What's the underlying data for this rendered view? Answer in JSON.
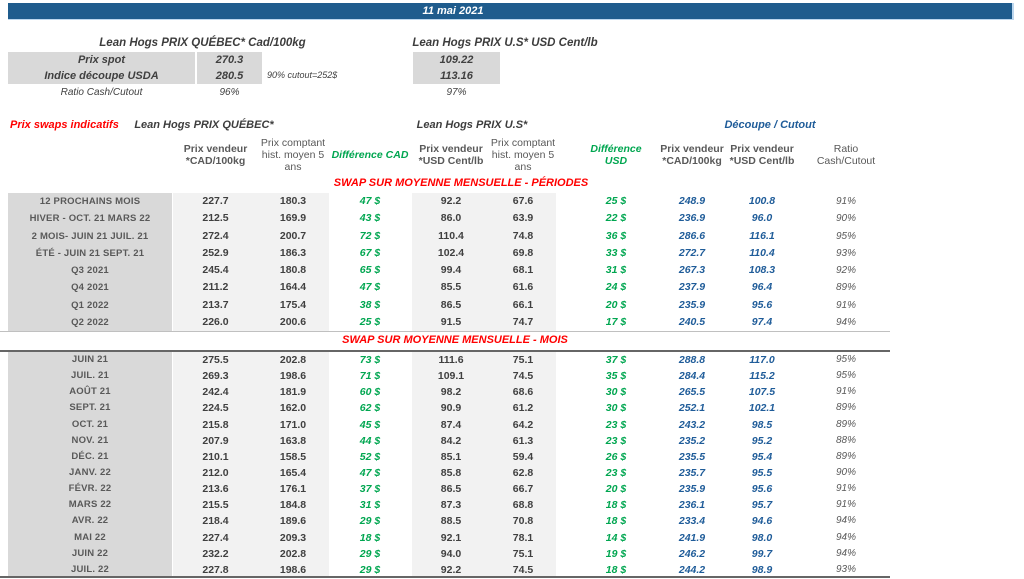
{
  "title_bar": {
    "date": "11 mai 2021"
  },
  "spot_section": {
    "qc_header": "Lean Hogs PRIX QUÉBEC* Cad/100kg",
    "us_header": "Lean Hogs PRIX U.S* USD Cent/lb",
    "rows": {
      "spot": {
        "label": "Prix spot",
        "qc": "270.3",
        "us": "109.22"
      },
      "cutout": {
        "label": "Indice découpe USDA",
        "qc": "280.5",
        "us": "113.16",
        "note": "90% cutout=252$"
      },
      "ratio": {
        "label": "Ratio Cash/Cutout",
        "qc": "96%",
        "us": "97%"
      }
    }
  },
  "swap_table": {
    "title": "Prix swaps indicatifs",
    "group_headers": {
      "qc": "Lean Hogs PRIX QUÉBEC*",
      "us": "Lean Hogs PRIX U.S*",
      "cutout": "Découpe / Cutout"
    },
    "col_headers": {
      "vendeur_cad": "Prix vendeur *CAD/100kg",
      "comptant_cad": "Prix comptant hist. moyen 5 ans",
      "diff_cad": "Différence CAD",
      "vendeur_usd": "Prix vendeur *USD Cent/lb",
      "comptant_usd": "Prix comptant hist. moyen 5 ans",
      "diff_usd": "Différence USD",
      "cutout_cad": "Prix vendeur *CAD/100kg",
      "cutout_usd": "Prix vendeur *USD Cent/lb",
      "ratio": "Ratio Cash/Cutout"
    },
    "sections": [
      {
        "header": "SWAP SUR MOYENNE MENSUELLE - PÉRIODES",
        "rows": [
          {
            "label": "12 PROCHAINS MOIS",
            "cells": [
              "227.7",
              "180.3",
              "47 $",
              "92.2",
              "67.6",
              "25 $",
              "248.9",
              "100.8",
              "91%"
            ]
          },
          {
            "label": "HIVER - OCT. 21 MARS 22",
            "cells": [
              "212.5",
              "169.9",
              "43 $",
              "86.0",
              "63.9",
              "22 $",
              "236.9",
              "96.0",
              "90%"
            ]
          },
          {
            "label": "2 MOIS- JUIN 21 JUIL. 21",
            "cells": [
              "272.4",
              "200.7",
              "72 $",
              "110.4",
              "74.8",
              "36 $",
              "286.6",
              "116.1",
              "95%"
            ]
          },
          {
            "label": "ÉTÉ - JUIN 21 SEPT. 21",
            "cells": [
              "252.9",
              "186.3",
              "67 $",
              "102.4",
              "69.8",
              "33 $",
              "272.7",
              "110.4",
              "93%"
            ]
          },
          {
            "label": "Q3 2021",
            "cells": [
              "245.4",
              "180.8",
              "65 $",
              "99.4",
              "68.1",
              "31 $",
              "267.3",
              "108.3",
              "92%"
            ]
          },
          {
            "label": "Q4 2021",
            "cells": [
              "211.2",
              "164.4",
              "47 $",
              "85.5",
              "61.6",
              "24 $",
              "237.9",
              "96.4",
              "89%"
            ]
          },
          {
            "label": "Q1 2022",
            "cells": [
              "213.7",
              "175.4",
              "38 $",
              "86.5",
              "66.1",
              "20 $",
              "235.9",
              "95.6",
              "91%"
            ]
          },
          {
            "label": "Q2 2022",
            "cells": [
              "226.0",
              "200.6",
              "25 $",
              "91.5",
              "74.7",
              "17 $",
              "240.5",
              "97.4",
              "94%"
            ]
          }
        ]
      },
      {
        "header": "SWAP SUR MOYENNE MENSUELLE - MOIS",
        "rows": [
          {
            "label": "JUIN 21",
            "cells": [
              "275.5",
              "202.8",
              "73 $",
              "111.6",
              "75.1",
              "37 $",
              "288.8",
              "117.0",
              "95%"
            ]
          },
          {
            "label": "JUIL. 21",
            "cells": [
              "269.3",
              "198.6",
              "71 $",
              "109.1",
              "74.5",
              "35 $",
              "284.4",
              "115.2",
              "95%"
            ]
          },
          {
            "label": "AOÛT 21",
            "cells": [
              "242.4",
              "181.9",
              "60 $",
              "98.2",
              "68.6",
              "30 $",
              "265.5",
              "107.5",
              "91%"
            ]
          },
          {
            "label": "SEPT. 21",
            "cells": [
              "224.5",
              "162.0",
              "62 $",
              "90.9",
              "61.2",
              "30 $",
              "252.1",
              "102.1",
              "89%"
            ]
          },
          {
            "label": "OCT. 21",
            "cells": [
              "215.8",
              "171.0",
              "45 $",
              "87.4",
              "64.2",
              "23 $",
              "243.2",
              "98.5",
              "89%"
            ]
          },
          {
            "label": "NOV. 21",
            "cells": [
              "207.9",
              "163.8",
              "44 $",
              "84.2",
              "61.3",
              "23 $",
              "235.2",
              "95.2",
              "88%"
            ]
          },
          {
            "label": "DÉC. 21",
            "cells": [
              "210.1",
              "158.5",
              "52 $",
              "85.1",
              "59.4",
              "26 $",
              "235.5",
              "95.4",
              "89%"
            ]
          },
          {
            "label": "JANV. 22",
            "cells": [
              "212.0",
              "165.4",
              "47 $",
              "85.8",
              "62.8",
              "23 $",
              "235.7",
              "95.5",
              "90%"
            ]
          },
          {
            "label": "FÉVR. 22",
            "cells": [
              "213.6",
              "176.1",
              "37 $",
              "86.5",
              "66.7",
              "20 $",
              "235.9",
              "95.6",
              "91%"
            ]
          },
          {
            "label": "MARS 22",
            "cells": [
              "215.5",
              "184.8",
              "31 $",
              "87.3",
              "68.8",
              "18 $",
              "236.1",
              "95.7",
              "91%"
            ]
          },
          {
            "label": "AVR. 22",
            "cells": [
              "218.4",
              "189.6",
              "29 $",
              "88.5",
              "70.8",
              "18 $",
              "233.4",
              "94.6",
              "94%"
            ]
          },
          {
            "label": "MAI 22",
            "cells": [
              "227.4",
              "209.3",
              "18 $",
              "92.1",
              "78.1",
              "14 $",
              "241.9",
              "98.0",
              "94%"
            ]
          },
          {
            "label": "JUIN 22",
            "cells": [
              "232.2",
              "202.8",
              "29 $",
              "94.0",
              "75.1",
              "19 $",
              "246.2",
              "99.7",
              "94%"
            ]
          },
          {
            "label": "JUIL. 22",
            "cells": [
              "227.8",
              "198.6",
              "29 $",
              "92.2",
              "74.5",
              "18 $",
              "244.2",
              "98.9",
              "93%"
            ]
          }
        ]
      }
    ]
  },
  "colors": {
    "header_bar": "#1f5c8d",
    "label_grey": "#d9d9d9",
    "stripe_grey": "#f2f2f2",
    "positive_green": "#00a650",
    "cutout_blue": "#1f5c99",
    "section_red": "#ff0000"
  }
}
